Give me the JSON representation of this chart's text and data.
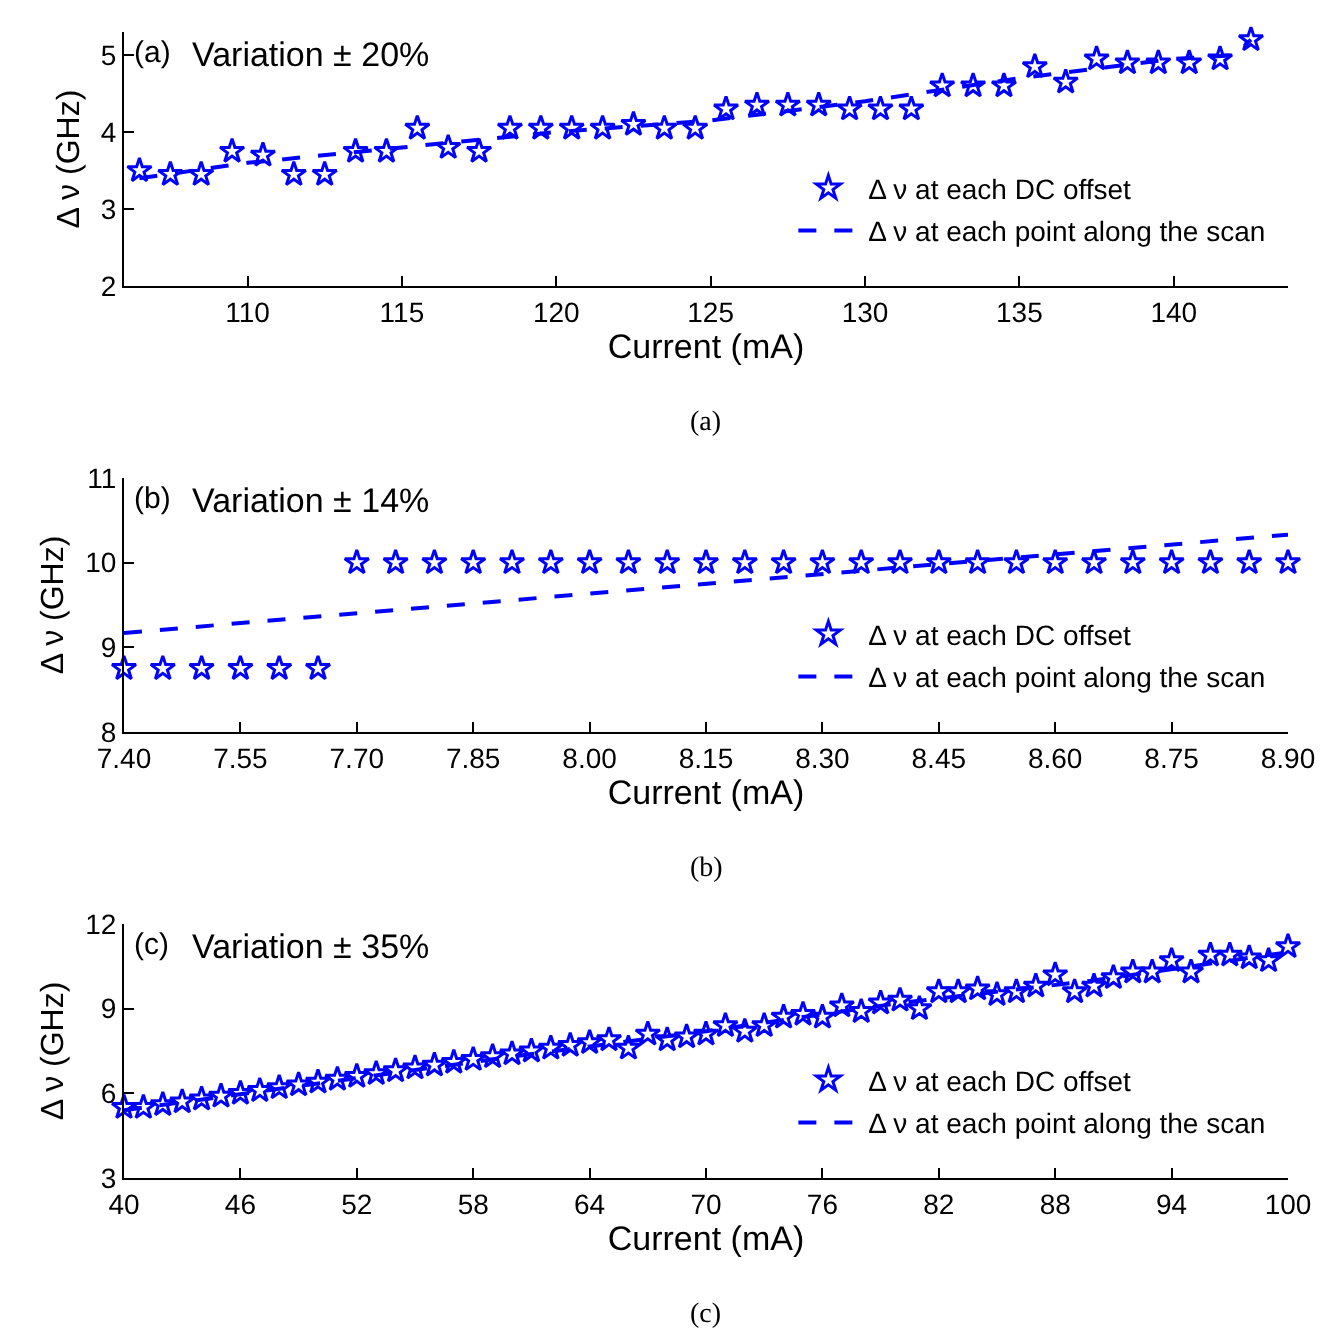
{
  "chart_data": [
    {
      "type": "scatter",
      "xlabel": "Current (mA)",
      "ylabel": "Δ ν (GHz)",
      "annotations": [
        "(a)",
        "Variation ± 20%",
        "(a)"
      ],
      "xlim": [
        106,
        143.7
      ],
      "xticks": [
        110,
        115,
        120,
        125,
        130,
        135,
        140
      ],
      "ylim": [
        2,
        5.3
      ],
      "yticks": [
        2,
        3,
        4,
        5
      ],
      "grid": false,
      "legend": "right",
      "series": [
        {
          "name": "Δ ν at each DC offset",
          "type": "scatter",
          "marker": "star",
          "color": "#0000ff",
          "x": [
            106.5,
            107.5,
            108.5,
            109.5,
            110.5,
            111.5,
            112.5,
            113.5,
            114.5,
            115.5,
            116.5,
            117.5,
            118.5,
            119.5,
            120.5,
            121.5,
            122.5,
            123.5,
            124.5,
            125.5,
            126.5,
            127.5,
            128.5,
            129.5,
            130.5,
            131.5,
            132.5,
            133.5,
            134.5,
            135.5,
            136.5,
            137.5,
            138.5,
            139.5,
            140.5,
            141.5,
            142.5
          ],
          "values": [
            3.5,
            3.45,
            3.45,
            3.75,
            3.7,
            3.45,
            3.45,
            3.75,
            3.75,
            4.05,
            3.8,
            3.75,
            4.05,
            4.05,
            4.05,
            4.05,
            4.1,
            4.05,
            4.05,
            4.3,
            4.35,
            4.35,
            4.35,
            4.3,
            4.3,
            4.3,
            4.6,
            4.6,
            4.6,
            4.85,
            4.65,
            4.95,
            4.9,
            4.9,
            4.9,
            4.95,
            5.2
          ]
        },
        {
          "name": "Δ ν at each point along the scan",
          "type": "line",
          "line_style": "dashed",
          "color": "#0000ff",
          "x": [
            106.5,
            110,
            115,
            120,
            125,
            130,
            135,
            140,
            142,
            142.5
          ],
          "values": [
            3.4,
            3.6,
            3.8,
            4.0,
            4.15,
            4.4,
            4.7,
            4.95,
            5.0,
            5.2
          ]
        }
      ]
    },
    {
      "type": "scatter",
      "xlabel": "Current (mA)",
      "ylabel": "Δ ν (GHz)",
      "annotations": [
        "(b)",
        "Variation ± 14%",
        "(b)"
      ],
      "xlim": [
        7.4,
        8.9
      ],
      "xticks": [
        {
          "value": 7.4,
          "label": "7.40"
        },
        {
          "value": 7.55,
          "label": "7.55"
        },
        {
          "value": 7.7,
          "label": "7.70"
        },
        {
          "value": 7.85,
          "label": "7.85"
        },
        {
          "value": 8,
          "label": "8.00"
        },
        {
          "value": 8.15,
          "label": "8.15"
        },
        {
          "value": 8.3,
          "label": "8.30"
        },
        {
          "value": 8.45,
          "label": "8.45"
        },
        {
          "value": 8.6,
          "label": "8.60"
        },
        {
          "value": 8.75,
          "label": "8.75"
        },
        {
          "value": 8.9,
          "label": "8.90"
        }
      ],
      "ylim": [
        8,
        11
      ],
      "yticks": [
        8,
        9,
        10,
        11
      ],
      "grid": false,
      "legend": "right",
      "series": [
        {
          "name": "Δ ν at each DC offset",
          "type": "scatter",
          "marker": "star",
          "color": "#0000ff",
          "x": [
            7.4,
            7.45,
            7.5,
            7.55,
            7.6,
            7.65,
            7.7,
            7.75,
            7.8,
            7.85,
            7.9,
            7.95,
            8.0,
            8.05,
            8.1,
            8.15,
            8.2,
            8.25,
            8.3,
            8.35,
            8.4,
            8.45,
            8.5,
            8.55,
            8.6,
            8.65,
            8.7,
            8.75,
            8.8,
            8.85,
            8.9
          ],
          "values": [
            8.75,
            8.75,
            8.75,
            8.75,
            8.75,
            8.75,
            10,
            10,
            10,
            10,
            10,
            10,
            10,
            10,
            10,
            10,
            10,
            10,
            10,
            10,
            10,
            10,
            10,
            10,
            10,
            10,
            10,
            10,
            10,
            10,
            10
          ]
        },
        {
          "name": "Δ ν at each point along the scan",
          "type": "line",
          "line_style": "dashed",
          "color": "#0000ff",
          "x": [
            7.4,
            8.9
          ],
          "values": [
            9.17,
            10.33
          ]
        }
      ]
    },
    {
      "type": "scatter",
      "xlabel": "Current (mA)",
      "ylabel": "Δ ν (GHz)",
      "annotations": [
        "(c)",
        "Variation ± 35%",
        "(c)"
      ],
      "xlim": [
        40,
        100
      ],
      "xticks": [
        40,
        46,
        52,
        58,
        64,
        70,
        76,
        82,
        88,
        94,
        100
      ],
      "ylim": [
        3,
        12
      ],
      "yticks": [
        3,
        6,
        9,
        12
      ],
      "grid": false,
      "legend": "right",
      "series": [
        {
          "name": "Δ ν at each DC offset",
          "type": "scatter",
          "marker": "star",
          "color": "#0000ff",
          "x": [
            40,
            41,
            42,
            43,
            44,
            45,
            46,
            47,
            48,
            49,
            50,
            51,
            52,
            53,
            54,
            55,
            56,
            57,
            58,
            59,
            60,
            61,
            62,
            63,
            64,
            65,
            66,
            67,
            68,
            69,
            70,
            71,
            72,
            73,
            74,
            75,
            76,
            77,
            78,
            79,
            80,
            81,
            82,
            83,
            84,
            85,
            86,
            87,
            88,
            89,
            90,
            91,
            92,
            93,
            94,
            95,
            96,
            97,
            98,
            99,
            100
          ],
          "values": [
            5.5,
            5.5,
            5.6,
            5.7,
            5.8,
            5.9,
            6.0,
            6.1,
            6.2,
            6.3,
            6.4,
            6.5,
            6.6,
            6.7,
            6.8,
            6.9,
            7.0,
            7.1,
            7.2,
            7.3,
            7.4,
            7.5,
            7.6,
            7.7,
            7.8,
            7.9,
            7.6,
            8.1,
            7.9,
            8.0,
            8.1,
            8.4,
            8.2,
            8.4,
            8.7,
            8.8,
            8.7,
            9.1,
            8.9,
            9.2,
            9.3,
            9.0,
            9.6,
            9.6,
            9.7,
            9.5,
            9.6,
            9.8,
            10.2,
            9.6,
            9.8,
            10.1,
            10.3,
            10.3,
            10.7,
            10.3,
            10.9,
            10.9,
            10.8,
            10.7,
            11.2
          ]
        },
        {
          "name": "Δ ν at each point along the scan",
          "type": "line",
          "line_style": "dashed",
          "color": "#0000ff",
          "x": [
            40,
            60,
            70,
            80,
            90,
            100
          ],
          "values": [
            5.4,
            7.3,
            8.2,
            9.2,
            10.0,
            11.0
          ]
        }
      ]
    }
  ]
}
